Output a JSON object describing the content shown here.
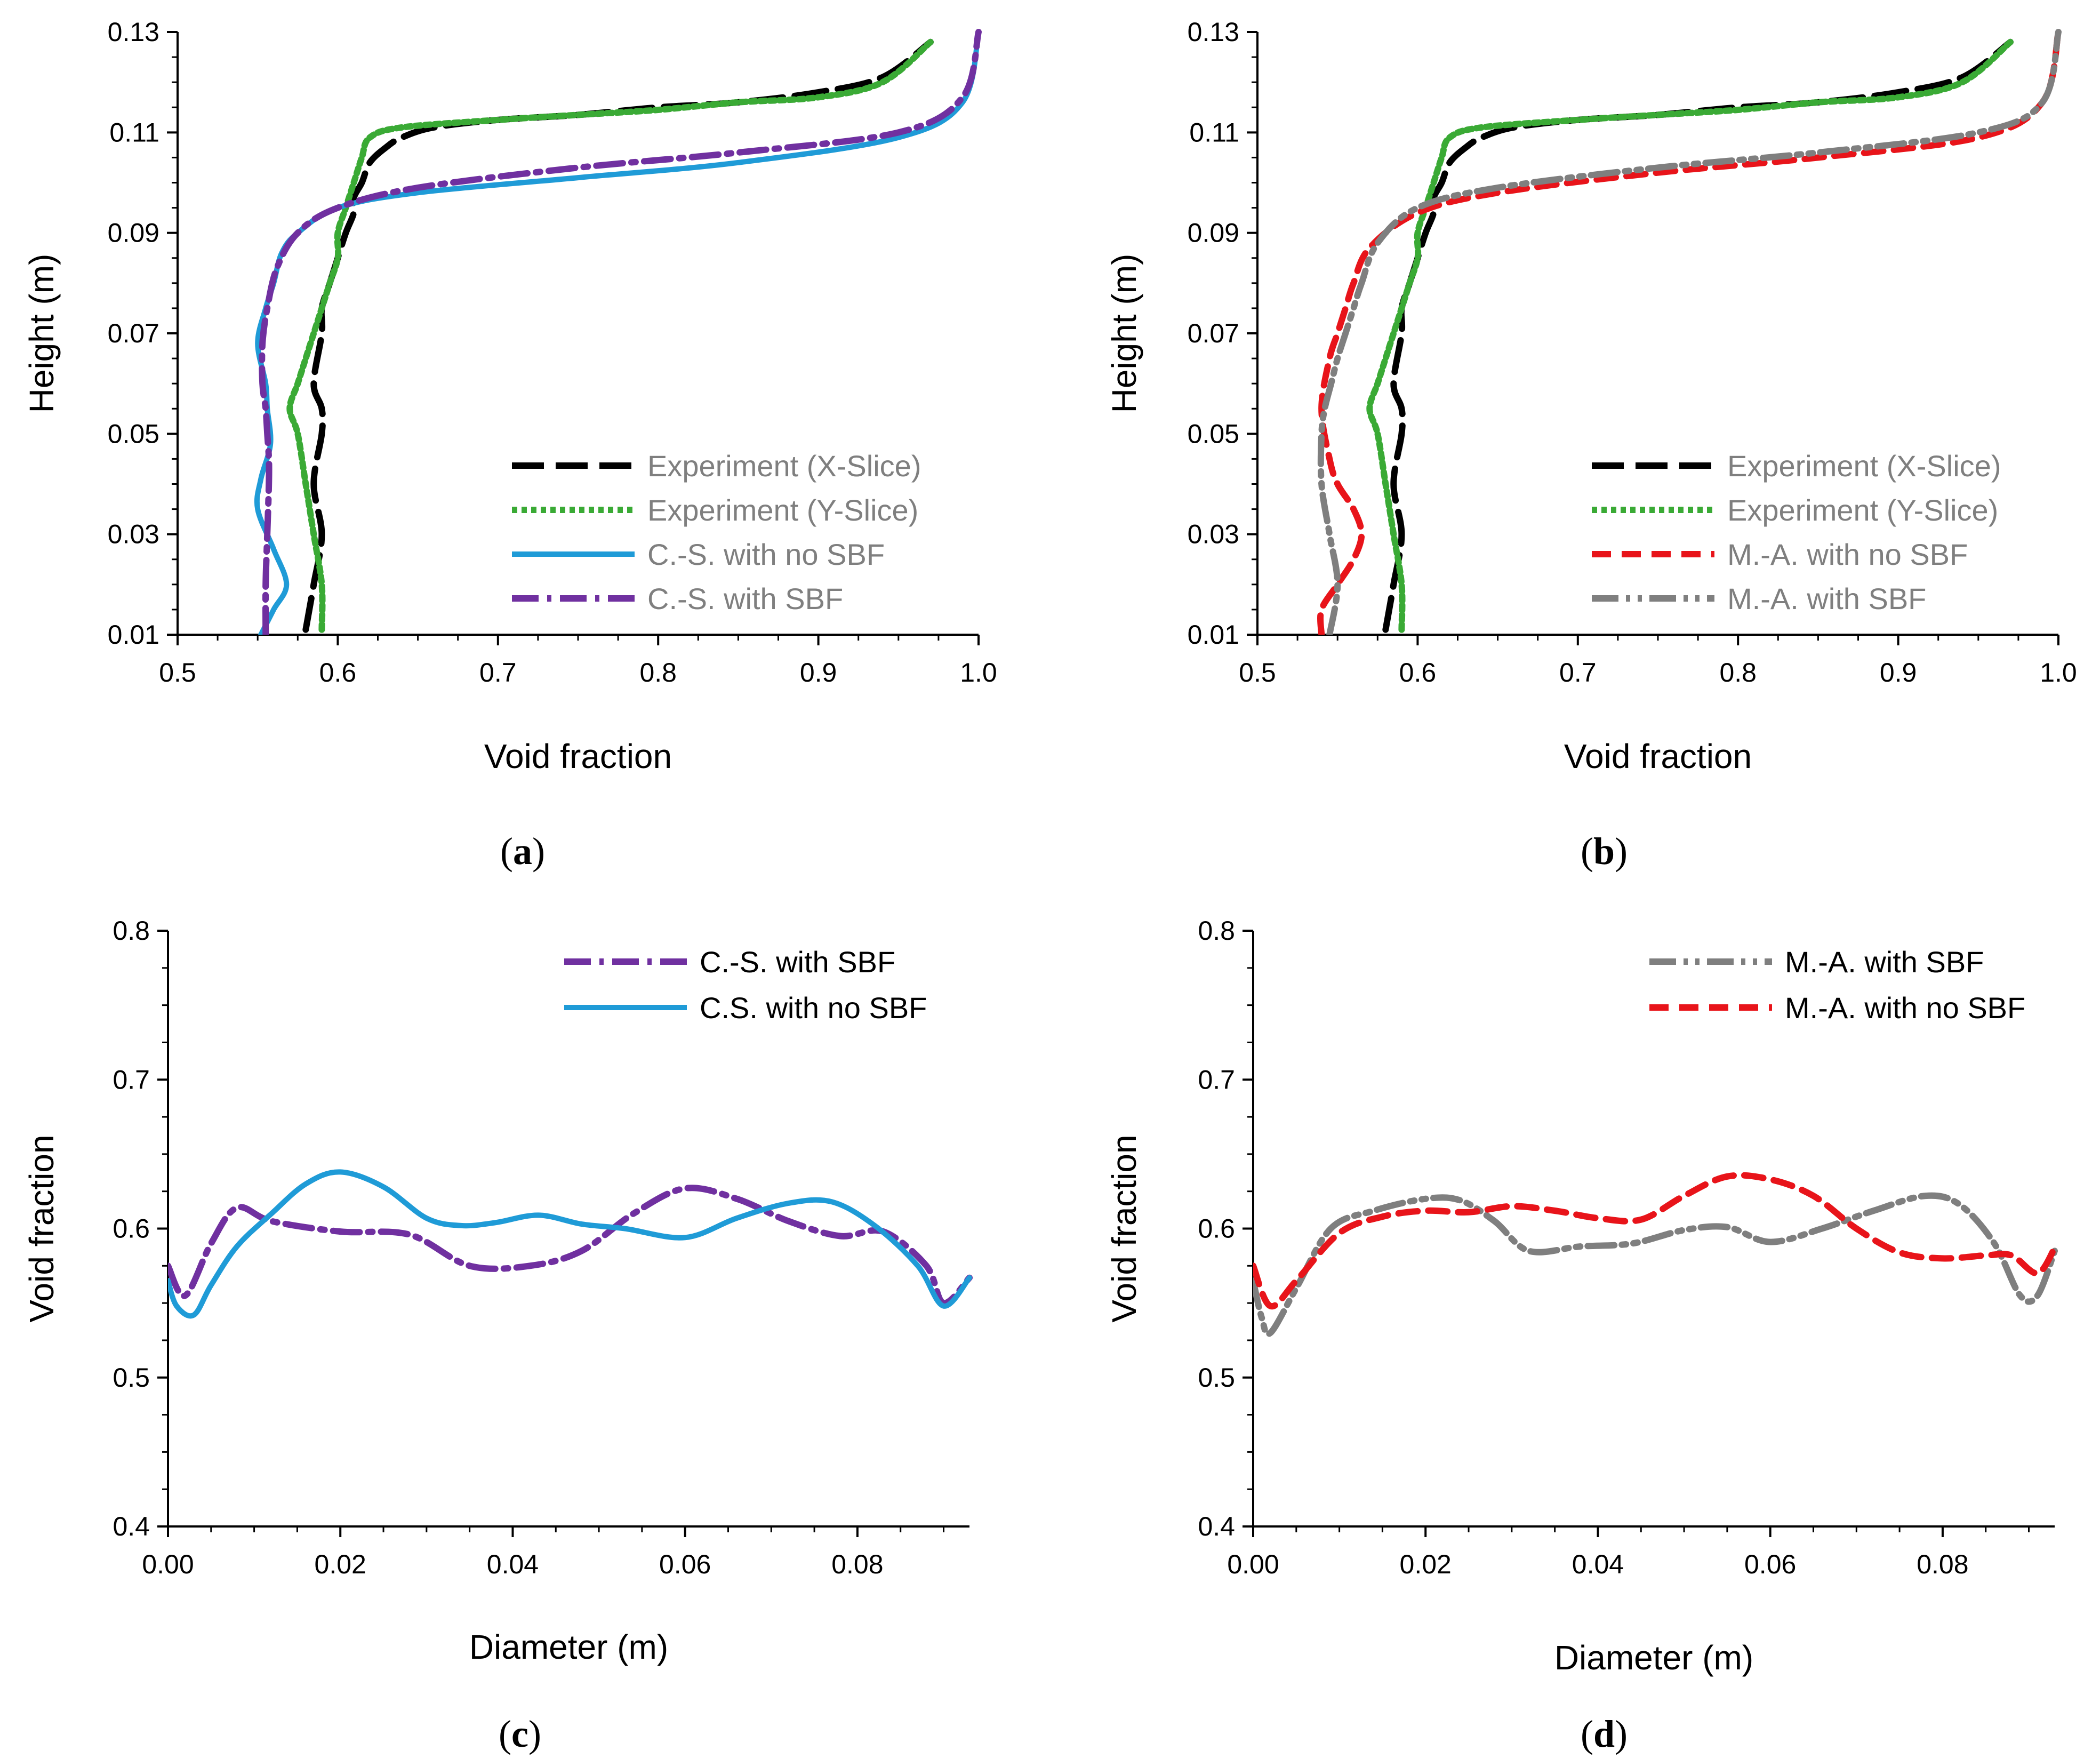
{
  "figure": {
    "panels": [
      "(a)",
      "(b)",
      "(c)",
      "(d)"
    ]
  },
  "colors": {
    "exp_x": "#000000",
    "exp_y": "#3aaa35",
    "cs_nosbf": "#1f9bd7",
    "cs_sbf": "#7030a0",
    "ma_nosbf": "#e8141a",
    "ma_sbf": "#7f7f7f"
  },
  "chart_data": [
    {
      "id": "a",
      "type": "line",
      "panel_label": "a",
      "xlabel": "Void fraction",
      "ylabel": "Height (m)",
      "xlim": [
        0.5,
        1.0
      ],
      "ylim": [
        0.01,
        0.13
      ],
      "xticks": [
        "0.5",
        "0.6",
        "0.7",
        "0.8",
        "0.9",
        "1.0"
      ],
      "yticks": [
        "0.01",
        "0.03",
        "0.05",
        "0.07",
        "0.09",
        "0.11",
        "0.13"
      ],
      "legend_position": "bottom-right",
      "series": [
        {
          "name": "Experiment (X-Slice)",
          "style": "exp_x",
          "x": [
            0.58,
            0.585,
            0.59,
            0.585,
            0.59,
            0.59,
            0.585,
            0.59,
            0.59,
            0.595,
            0.6,
            0.605,
            0.61,
            0.61,
            0.615,
            0.62,
            0.63,
            0.64,
            0.66,
            0.7,
            0.75,
            0.8,
            0.85,
            0.9,
            0.94,
            0.97
          ],
          "y": [
            0.011,
            0.02,
            0.03,
            0.04,
            0.05,
            0.055,
            0.06,
            0.07,
            0.075,
            0.08,
            0.085,
            0.09,
            0.094,
            0.097,
            0.1,
            0.104,
            0.107,
            0.109,
            0.111,
            0.1125,
            0.1135,
            0.115,
            0.116,
            0.118,
            0.121,
            0.128
          ]
        },
        {
          "name": "Experiment (Y-Slice)",
          "style": "exp_y",
          "x": [
            0.59,
            0.59,
            0.585,
            0.58,
            0.575,
            0.57,
            0.575,
            0.58,
            0.585,
            0.59,
            0.595,
            0.6,
            0.6,
            0.605,
            0.61,
            0.615,
            0.62,
            0.64,
            0.7,
            0.75,
            0.8,
            0.85,
            0.9,
            0.94,
            0.97
          ],
          "y": [
            0.011,
            0.02,
            0.03,
            0.04,
            0.05,
            0.055,
            0.06,
            0.065,
            0.07,
            0.075,
            0.08,
            0.085,
            0.09,
            0.095,
            0.1,
            0.105,
            0.109,
            0.111,
            0.1125,
            0.1135,
            0.1145,
            0.116,
            0.117,
            0.12,
            0.128
          ]
        },
        {
          "name": "C.-S. with no SBF",
          "style": "cs_nosbf",
          "x": [
            0.552,
            0.56,
            0.568,
            0.56,
            0.55,
            0.552,
            0.558,
            0.556,
            0.555,
            0.55,
            0.555,
            0.56,
            0.565,
            0.575,
            0.6,
            0.65,
            0.75,
            0.85,
            0.95,
            0.99,
            1.0
          ],
          "y": [
            0.01,
            0.015,
            0.02,
            0.027,
            0.035,
            0.041,
            0.048,
            0.055,
            0.06,
            0.068,
            0.075,
            0.08,
            0.086,
            0.09,
            0.095,
            0.098,
            0.101,
            0.104,
            0.109,
            0.116,
            0.13
          ]
        },
        {
          "name": "C.-S. with SBF",
          "style": "cs_sbf",
          "x": [
            0.555,
            0.555,
            0.556,
            0.557,
            0.557,
            0.556,
            0.555,
            0.553,
            0.553,
            0.556,
            0.562,
            0.575,
            0.6,
            0.65,
            0.75,
            0.85,
            0.95,
            0.99,
            1.0
          ],
          "y": [
            0.01,
            0.02,
            0.03,
            0.04,
            0.045,
            0.05,
            0.055,
            0.06,
            0.068,
            0.075,
            0.083,
            0.09,
            0.095,
            0.099,
            0.103,
            0.106,
            0.11,
            0.117,
            0.13
          ]
        }
      ]
    },
    {
      "id": "b",
      "type": "line",
      "panel_label": "b",
      "xlabel": "Void fraction",
      "ylabel": "Height (m)",
      "xlim": [
        0.5,
        1.0
      ],
      "ylim": [
        0.01,
        0.13
      ],
      "xticks": [
        "0.5",
        "0.6",
        "0.7",
        "0.8",
        "0.9",
        "1.0"
      ],
      "yticks": [
        "0.01",
        "0.03",
        "0.05",
        "0.07",
        "0.09",
        "0.11",
        "0.13"
      ],
      "legend_position": "bottom-right",
      "series": [
        {
          "name": "Experiment (X-Slice)",
          "style": "exp_x",
          "x": [
            0.58,
            0.585,
            0.59,
            0.585,
            0.59,
            0.59,
            0.585,
            0.59,
            0.59,
            0.595,
            0.6,
            0.605,
            0.61,
            0.61,
            0.615,
            0.62,
            0.63,
            0.64,
            0.66,
            0.7,
            0.75,
            0.8,
            0.85,
            0.9,
            0.94,
            0.97
          ],
          "y": [
            0.011,
            0.02,
            0.03,
            0.04,
            0.05,
            0.055,
            0.06,
            0.07,
            0.075,
            0.08,
            0.085,
            0.09,
            0.094,
            0.097,
            0.1,
            0.104,
            0.107,
            0.109,
            0.111,
            0.1125,
            0.1135,
            0.115,
            0.116,
            0.118,
            0.121,
            0.128
          ]
        },
        {
          "name": "Experiment (Y-Slice)",
          "style": "exp_y",
          "x": [
            0.59,
            0.59,
            0.585,
            0.58,
            0.575,
            0.57,
            0.575,
            0.58,
            0.585,
            0.59,
            0.595,
            0.6,
            0.6,
            0.605,
            0.61,
            0.615,
            0.62,
            0.64,
            0.7,
            0.75,
            0.8,
            0.85,
            0.9,
            0.94,
            0.97
          ],
          "y": [
            0.011,
            0.02,
            0.03,
            0.04,
            0.05,
            0.055,
            0.06,
            0.065,
            0.07,
            0.075,
            0.08,
            0.085,
            0.09,
            0.095,
            0.1,
            0.105,
            0.109,
            0.111,
            0.1125,
            0.1135,
            0.1145,
            0.116,
            0.117,
            0.12,
            0.128
          ]
        },
        {
          "name": "M.-A. with no SBF",
          "style": "ma_nosbf",
          "x": [
            0.54,
            0.54,
            0.55,
            0.56,
            0.565,
            0.56,
            0.55,
            0.545,
            0.54,
            0.545,
            0.55,
            0.555,
            0.56,
            0.57,
            0.6,
            0.65,
            0.75,
            0.85,
            0.95,
            0.99,
            1.0
          ],
          "y": [
            0.01,
            0.015,
            0.02,
            0.025,
            0.03,
            0.035,
            0.04,
            0.045,
            0.055,
            0.065,
            0.07,
            0.075,
            0.08,
            0.087,
            0.094,
            0.098,
            0.102,
            0.105,
            0.109,
            0.116,
            0.13
          ]
        },
        {
          "name": "M.-A. with SBF",
          "style": "ma_sbf",
          "x": [
            0.545,
            0.55,
            0.545,
            0.54,
            0.54,
            0.542,
            0.546,
            0.55,
            0.555,
            0.56,
            0.565,
            0.575,
            0.6,
            0.65,
            0.75,
            0.85,
            0.95,
            0.99,
            1.0
          ],
          "y": [
            0.01,
            0.02,
            0.03,
            0.04,
            0.05,
            0.055,
            0.06,
            0.065,
            0.07,
            0.075,
            0.08,
            0.088,
            0.095,
            0.099,
            0.103,
            0.106,
            0.11,
            0.116,
            0.13
          ]
        }
      ]
    },
    {
      "id": "c",
      "type": "line",
      "panel_label": "c",
      "xlabel": "Diameter (m)",
      "ylabel": "Void fraction",
      "xlim": [
        0.0,
        0.093
      ],
      "ylim": [
        0.4,
        0.8
      ],
      "xticks": [
        "0.00",
        "0.02",
        "0.04",
        "0.06",
        "0.08"
      ],
      "xtick_values": [
        0.0,
        0.02,
        0.04,
        0.06,
        0.08
      ],
      "yticks": [
        "0.4",
        "0.5",
        "0.6",
        "0.7",
        "0.8"
      ],
      "legend_position": "top-right",
      "series": [
        {
          "name": "C.-S. with SBF",
          "style": "cs_sbf",
          "x": [
            0.0,
            0.002,
            0.005,
            0.008,
            0.012,
            0.02,
            0.028,
            0.035,
            0.042,
            0.048,
            0.054,
            0.06,
            0.066,
            0.072,
            0.078,
            0.083,
            0.088,
            0.09,
            0.093
          ],
          "y": [
            0.575,
            0.555,
            0.59,
            0.614,
            0.605,
            0.598,
            0.596,
            0.575,
            0.575,
            0.585,
            0.61,
            0.627,
            0.62,
            0.605,
            0.595,
            0.598,
            0.575,
            0.55,
            0.567
          ]
        },
        {
          "name": "C.S. with no SBF",
          "style": "cs_nosbf",
          "x": [
            0.0,
            0.001,
            0.003,
            0.005,
            0.008,
            0.012,
            0.016,
            0.02,
            0.025,
            0.03,
            0.034,
            0.038,
            0.043,
            0.048,
            0.053,
            0.06,
            0.066,
            0.072,
            0.077,
            0.082,
            0.087,
            0.09,
            0.093
          ],
          "y": [
            0.565,
            0.548,
            0.542,
            0.562,
            0.588,
            0.61,
            0.63,
            0.638,
            0.628,
            0.607,
            0.602,
            0.604,
            0.609,
            0.603,
            0.6,
            0.594,
            0.607,
            0.617,
            0.618,
            0.602,
            0.575,
            0.548,
            0.567
          ]
        }
      ]
    },
    {
      "id": "d",
      "type": "line",
      "panel_label": "d",
      "xlabel": "Diameter (m)",
      "ylabel": "Void fraction",
      "xlim": [
        0.0,
        0.093
      ],
      "ylim": [
        0.4,
        0.8
      ],
      "xticks": [
        "0.00",
        "0.02",
        "0.04",
        "0.06",
        "0.08"
      ],
      "xtick_values": [
        0.0,
        0.02,
        0.04,
        0.06,
        0.08
      ],
      "yticks": [
        "0.4",
        "0.5",
        "0.6",
        "0.7",
        "0.8"
      ],
      "legend_position": "top-right",
      "series": [
        {
          "name": "M.-A. with SBF",
          "style": "ma_sbf",
          "x": [
            0.0,
            0.001,
            0.002,
            0.005,
            0.009,
            0.014,
            0.02,
            0.024,
            0.028,
            0.032,
            0.038,
            0.044,
            0.05,
            0.055,
            0.06,
            0.066,
            0.072,
            0.078,
            0.082,
            0.086,
            0.089,
            0.091,
            0.093
          ],
          "y": [
            0.565,
            0.54,
            0.53,
            0.56,
            0.6,
            0.612,
            0.62,
            0.619,
            0.605,
            0.585,
            0.588,
            0.59,
            0.599,
            0.601,
            0.591,
            0.6,
            0.612,
            0.622,
            0.616,
            0.59,
            0.555,
            0.555,
            0.585
          ]
        },
        {
          "name": "M.-A. with no SBF",
          "style": "ma_nosbf",
          "x": [
            0.0,
            0.002,
            0.005,
            0.01,
            0.015,
            0.02,
            0.025,
            0.03,
            0.035,
            0.04,
            0.045,
            0.05,
            0.055,
            0.06,
            0.065,
            0.07,
            0.075,
            0.08,
            0.085,
            0.088,
            0.091,
            0.093
          ],
          "y": [
            0.575,
            0.548,
            0.565,
            0.597,
            0.608,
            0.612,
            0.611,
            0.615,
            0.612,
            0.607,
            0.606,
            0.622,
            0.635,
            0.633,
            0.622,
            0.6,
            0.584,
            0.58,
            0.582,
            0.582,
            0.57,
            0.587
          ]
        }
      ]
    }
  ]
}
